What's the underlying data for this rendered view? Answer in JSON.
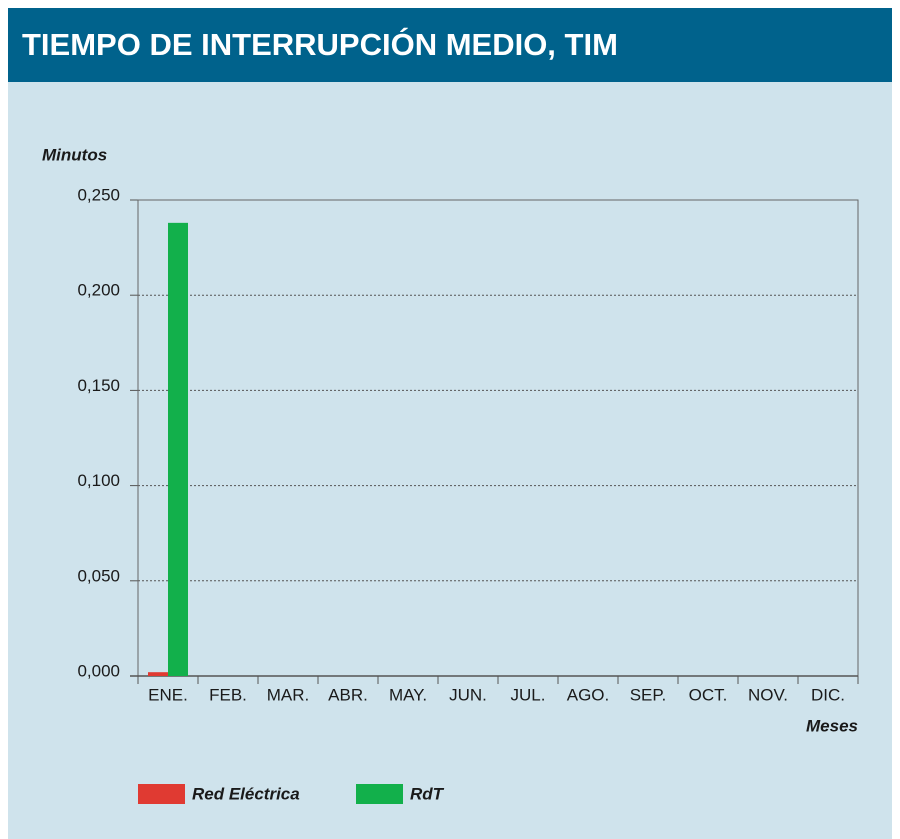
{
  "chart_data": {
    "type": "bar",
    "title": "TIEMPO DE INTERRUPCIÓN MEDIO, TIM",
    "y_label": "Minutos",
    "x_label": "Meses",
    "categories": [
      "ENE.",
      "FEB.",
      "MAR.",
      "ABR.",
      "MAY.",
      "JUN.",
      "JUL.",
      "AGO.",
      "SEP.",
      "OCT.",
      "NOV.",
      "DIC."
    ],
    "series": [
      {
        "name": "Red Eléctrica",
        "color": "#e03a32",
        "values": [
          0.002,
          null,
          null,
          null,
          null,
          null,
          null,
          null,
          null,
          null,
          null,
          null
        ]
      },
      {
        "name": "RdT",
        "color": "#12b04b",
        "values": [
          0.238,
          null,
          null,
          null,
          null,
          null,
          null,
          null,
          null,
          null,
          null,
          null
        ]
      }
    ],
    "ylim": [
      0,
      0.25
    ],
    "yticks": [
      {
        "value": 0,
        "label": "0,000"
      },
      {
        "value": 0.05,
        "label": "0,050"
      },
      {
        "value": 0.1,
        "label": "0,100"
      },
      {
        "value": 0.15,
        "label": "0,150"
      },
      {
        "value": 0.2,
        "label": "0,200"
      },
      {
        "value": 0.25,
        "label": "0,250"
      }
    ],
    "grid": true,
    "legend": "bottom"
  }
}
